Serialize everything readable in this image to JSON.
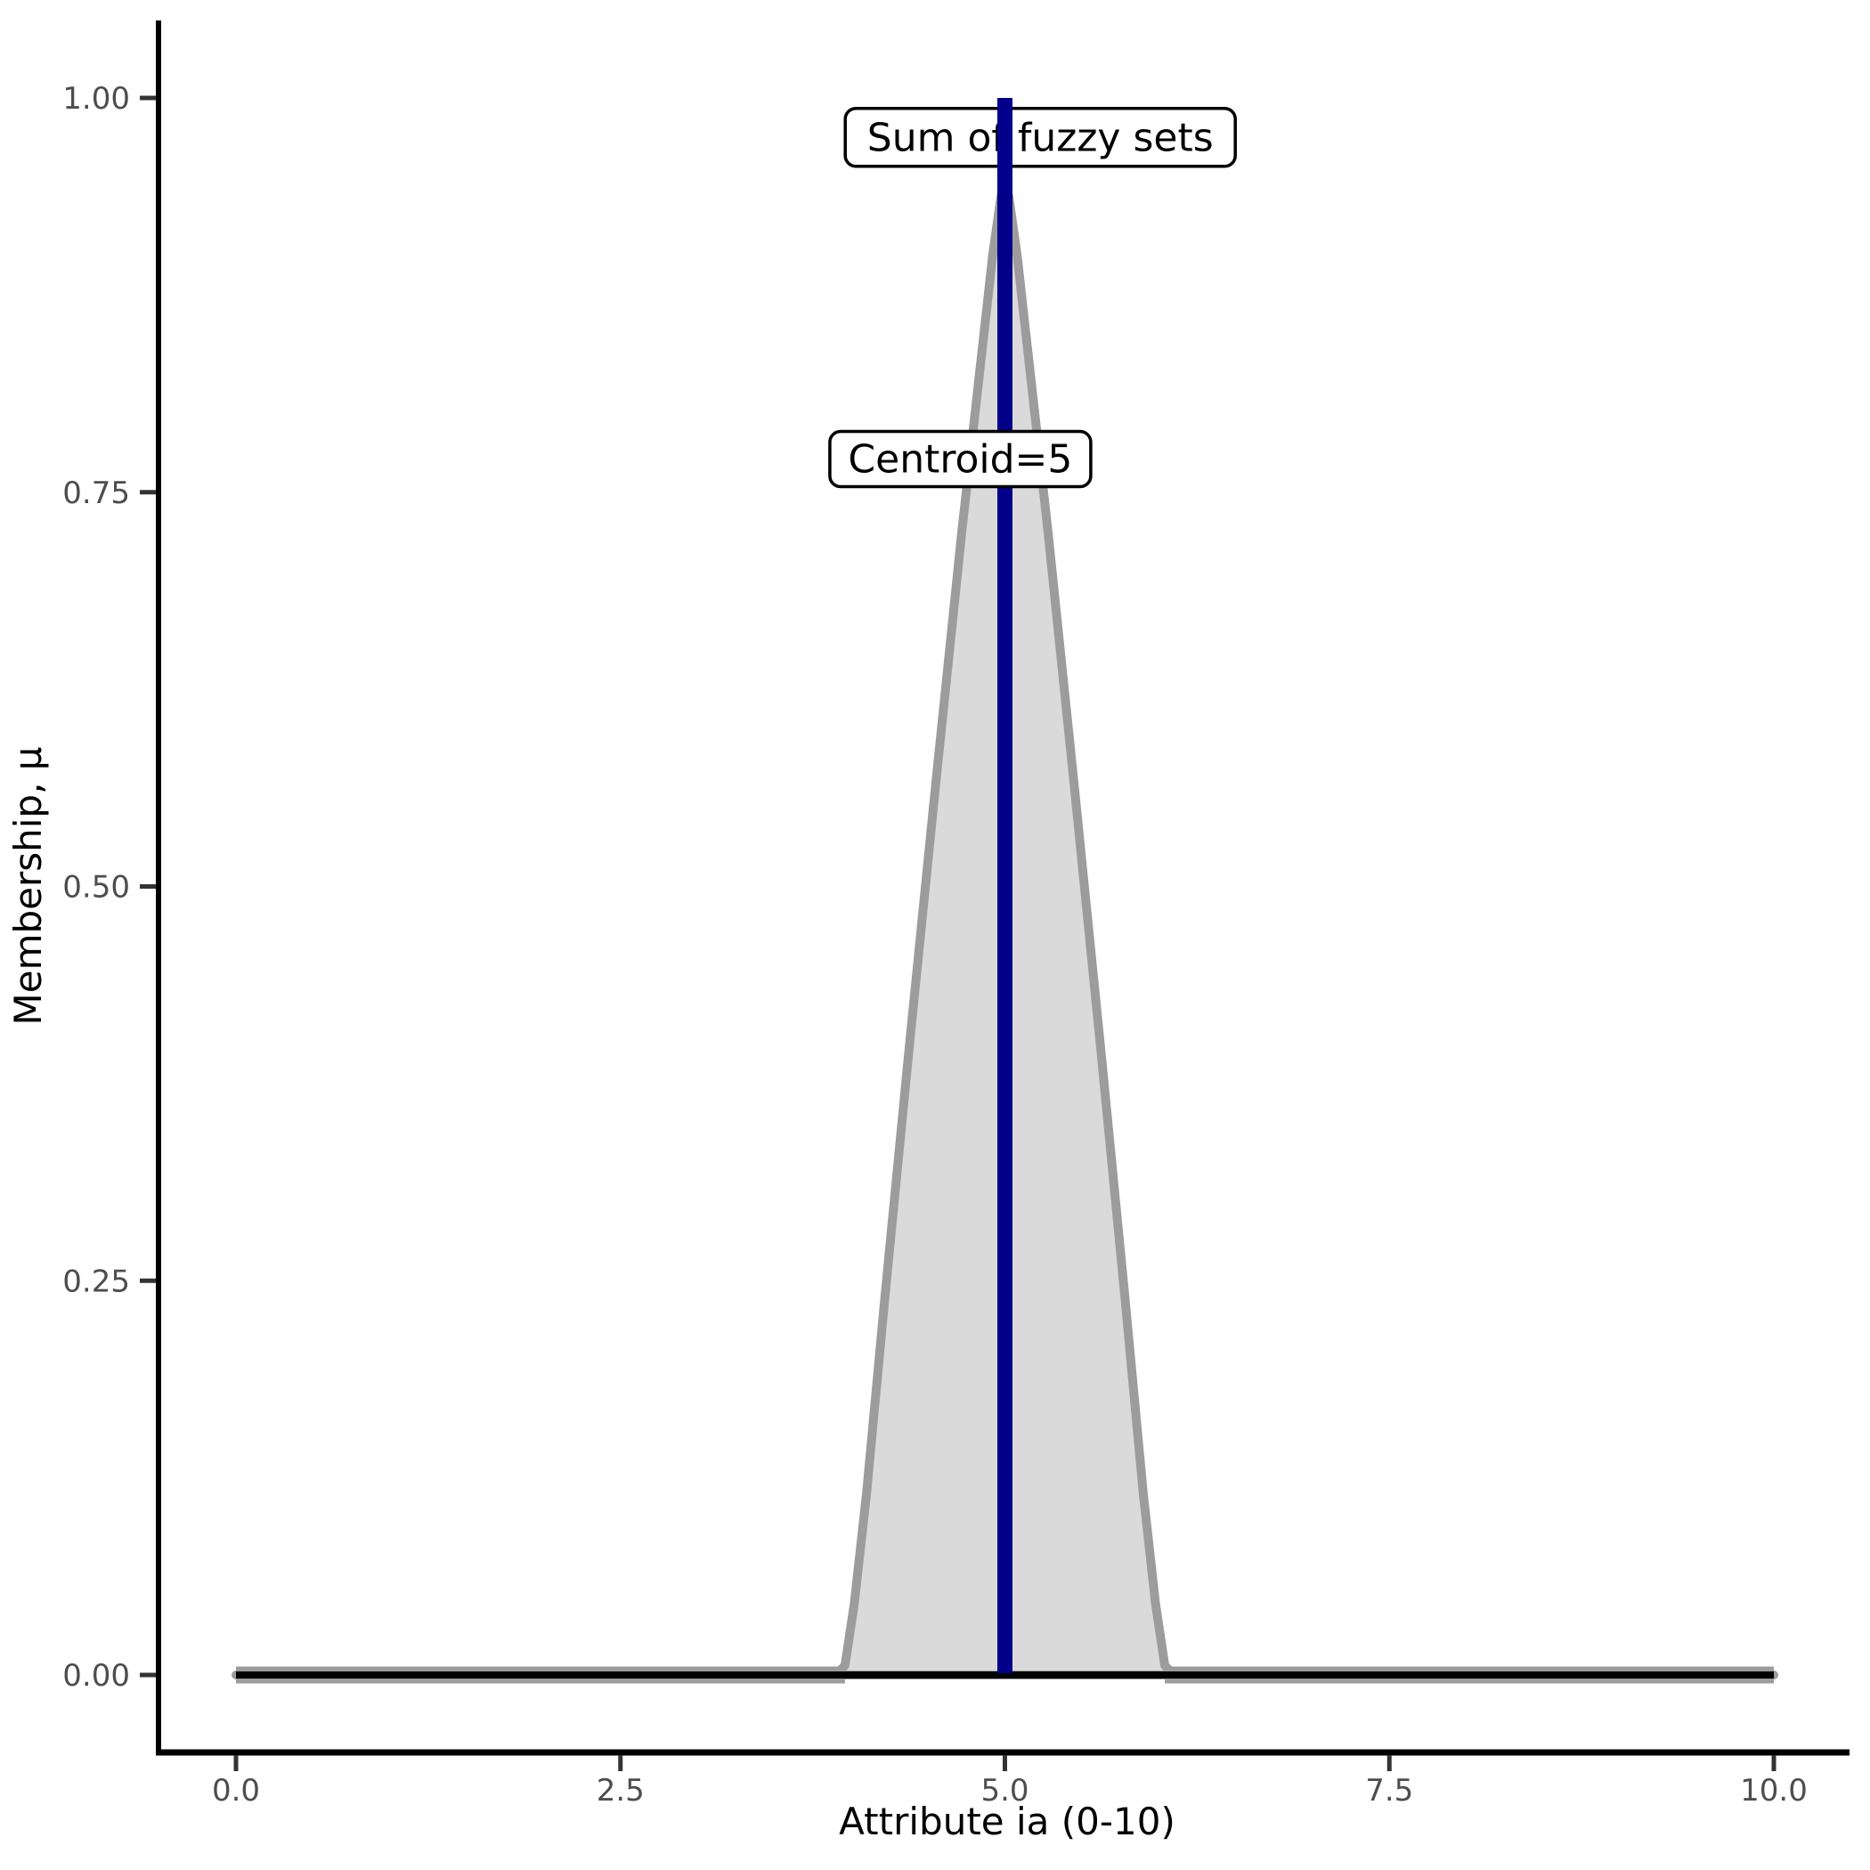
{
  "figure": {
    "background": "#FFFFFF"
  },
  "chart_data": {
    "type": "area",
    "title": "",
    "xlabel": "Attribute ia (0-10)",
    "ylabel": "Membership, μ",
    "xlim": [
      0,
      10
    ],
    "ylim": [
      0,
      1
    ],
    "grid": "off",
    "legend": "none",
    "x_ticks": [
      {
        "value": 0,
        "label": "0.0"
      },
      {
        "value": 2.5,
        "label": "2.5"
      },
      {
        "value": 5,
        "label": "5.0"
      },
      {
        "value": 7.5,
        "label": "7.5"
      },
      {
        "value": 10,
        "label": "10.0"
      }
    ],
    "y_ticks": [
      {
        "value": 0,
        "label": "0.00"
      },
      {
        "value": 0.25,
        "label": "0.25"
      },
      {
        "value": 0.5,
        "label": "0.50"
      },
      {
        "value": 0.75,
        "label": "0.75"
      },
      {
        "value": 1,
        "label": "1.00"
      }
    ],
    "series": [
      {
        "name": "sum-of-fuzzy-sets",
        "type": "area",
        "fill": "#DADADA",
        "stroke": "#9C9C9C",
        "stroke_width": 10,
        "points": [
          [
            0,
            0
          ],
          [
            3.9,
            0
          ],
          [
            3.96,
            0.006
          ],
          [
            4.02,
            0.045
          ],
          [
            4.1,
            0.115
          ],
          [
            4.22,
            0.24
          ],
          [
            4.38,
            0.4
          ],
          [
            4.55,
            0.565
          ],
          [
            4.72,
            0.725
          ],
          [
            4.84,
            0.83
          ],
          [
            4.92,
            0.9
          ],
          [
            4.975,
            0.938
          ],
          [
            5.0,
            0.945
          ],
          [
            5.025,
            0.938
          ],
          [
            5.08,
            0.9
          ],
          [
            5.16,
            0.83
          ],
          [
            5.28,
            0.725
          ],
          [
            5.45,
            0.565
          ],
          [
            5.62,
            0.4
          ],
          [
            5.78,
            0.24
          ],
          [
            5.9,
            0.115
          ],
          [
            5.98,
            0.045
          ],
          [
            6.04,
            0.006
          ],
          [
            6.1,
            0
          ],
          [
            10,
            0
          ]
        ]
      },
      {
        "name": "zero-membership-line",
        "type": "line",
        "stroke": "#000000",
        "stroke_width": 8,
        "points": [
          [
            0,
            0
          ],
          [
            10,
            0
          ]
        ]
      },
      {
        "name": "centroid-vline",
        "type": "vline",
        "x": 5,
        "y0": 0,
        "y1": 1,
        "stroke": "#00008B",
        "stroke_width": 17
      }
    ],
    "annotations": [
      {
        "label": "Sum of fuzzy sets",
        "x": 5.23,
        "y": 0.975,
        "box": true
      },
      {
        "label": "Centroid=5",
        "x": 4.71,
        "y": 0.771,
        "box": true
      }
    ],
    "centroid_value": 5
  },
  "colors": {
    "axis_line": "#000000",
    "tick_mark": "#333333",
    "tick_label": "#4D4D4D",
    "area_fill": "#DADADA",
    "area_stroke": "#9C9C9C",
    "zero_line": "#000000",
    "centroid_line": "#00008B",
    "annotation_box_bg": "#FFFFFF",
    "annotation_box_border": "#000000"
  }
}
